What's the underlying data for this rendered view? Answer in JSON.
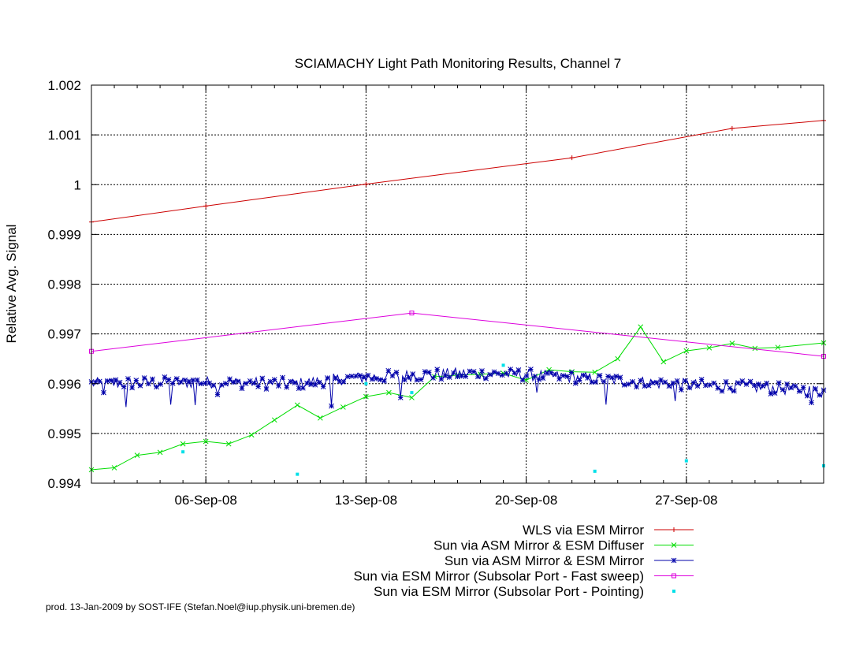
{
  "chart_data": {
    "type": "line",
    "title": "SCIAMACHY Light Path Monitoring Results, Channel 7",
    "xlabel": "",
    "ylabel": "Relative Avg. Signal",
    "x_range": [
      "2008-09-01",
      "2008-10-03"
    ],
    "ylim": [
      0.994,
      1.002
    ],
    "x_ticks": [
      "06-Sep-08",
      "13-Sep-08",
      "20-Sep-08",
      "27-Sep-08"
    ],
    "y_ticks": [
      "1.002",
      "1.001",
      "1",
      "0.999",
      "0.998",
      "0.997",
      "0.996",
      "0.995",
      "0.994"
    ],
    "grid": true,
    "legend_position": "bottom-right, below plot",
    "series": [
      {
        "name": "WLS via ESM Mirror",
        "color": "#cc0000",
        "marker": "plus",
        "points": [
          [
            "2008-09-01",
            0.99925
          ],
          [
            "2008-09-06",
            0.99957
          ],
          [
            "2008-09-13",
            1.00001
          ],
          [
            "2008-09-22",
            1.00054
          ],
          [
            "2008-09-29",
            1.00113
          ],
          [
            "2008-10-03",
            1.00129
          ]
        ]
      },
      {
        "name": "Sun via ASM Mirror & ESM Diffuser",
        "color": "#00dd00",
        "marker": "x",
        "points": [
          [
            "2008-09-01",
            0.99427
          ],
          [
            "2008-09-02",
            0.99431
          ],
          [
            "2008-09-03",
            0.99456
          ],
          [
            "2008-09-04",
            0.99462
          ],
          [
            "2008-09-05",
            0.99479
          ],
          [
            "2008-09-06",
            0.99484
          ],
          [
            "2008-09-07",
            0.99479
          ],
          [
            "2008-09-08",
            0.99497
          ],
          [
            "2008-09-09",
            0.99527
          ],
          [
            "2008-09-10",
            0.99557
          ],
          [
            "2008-09-11",
            0.99531
          ],
          [
            "2008-09-12",
            0.99553
          ],
          [
            "2008-09-13",
            0.99574
          ],
          [
            "2008-09-14",
            0.99582
          ],
          [
            "2008-09-15",
            0.99572
          ],
          [
            "2008-09-16",
            0.99614
          ],
          [
            "2008-09-17",
            0.99617
          ],
          [
            "2008-09-18",
            0.99619
          ],
          [
            "2008-09-19",
            0.99621
          ],
          [
            "2008-09-20",
            0.99607
          ],
          [
            "2008-09-21",
            0.99628
          ],
          [
            "2008-09-22",
            0.99624
          ],
          [
            "2008-09-23",
            0.99623
          ],
          [
            "2008-09-24",
            0.9965
          ],
          [
            "2008-09-25",
            0.99714
          ],
          [
            "2008-09-26",
            0.99644
          ],
          [
            "2008-09-27",
            0.99666
          ],
          [
            "2008-09-28",
            0.99672
          ],
          [
            "2008-09-29",
            0.99681
          ],
          [
            "2008-09-30",
            0.99671
          ],
          [
            "2008-10-01",
            0.99673
          ],
          [
            "2008-10-03",
            0.99682
          ]
        ]
      },
      {
        "name": "Sun via ASM Mirror & ESM Mirror",
        "color": "#0000aa",
        "marker": "star",
        "base_profile": [
          [
            "2008-09-01",
            0.996
          ],
          [
            "2008-09-06",
            0.99603
          ],
          [
            "2008-09-10",
            0.996
          ],
          [
            "2008-09-12",
            0.9961
          ],
          [
            "2008-09-14",
            0.99615
          ],
          [
            "2008-09-17",
            0.9962
          ],
          [
            "2008-09-20",
            0.99618
          ],
          [
            "2008-09-23",
            0.9961
          ],
          [
            "2008-09-26",
            0.996
          ],
          [
            "2008-09-29",
            0.99595
          ],
          [
            "2008-10-03",
            0.99585
          ]
        ],
        "noise": 0.00012,
        "dips": [
          [
            "2008-09-01",
            0.99582
          ],
          [
            "2008-09-02",
            0.99553
          ],
          [
            "2008-09-04",
            0.99558
          ],
          [
            "2008-09-05",
            0.99557
          ],
          [
            "2008-09-06",
            0.99578
          ],
          [
            "2008-09-11",
            0.99555
          ],
          [
            "2008-09-14",
            0.99572
          ],
          [
            "2008-09-20",
            0.99582
          ],
          [
            "2008-09-23",
            0.99558
          ],
          [
            "2008-09-26",
            0.99565
          ],
          [
            "2008-10-02",
            0.99562
          ]
        ]
      },
      {
        "name": "Sun via ESM Mirror (Subsolar Port - Fast sweep)",
        "color": "#dd00dd",
        "marker": "square",
        "points": [
          [
            "2008-09-01",
            0.99665
          ],
          [
            "2008-09-15",
            0.99742
          ],
          [
            "2008-10-03",
            0.99655
          ]
        ]
      },
      {
        "name": "Sun via ESM Mirror (Subsolar Port - Pointing)",
        "color": "#00e0e8",
        "marker": "dot",
        "points": [
          [
            "2008-09-05",
            0.99463
          ],
          [
            "2008-09-10",
            0.99418
          ],
          [
            "2008-09-13",
            0.996
          ],
          [
            "2008-09-15",
            0.99582
          ],
          [
            "2008-09-19",
            0.99637
          ],
          [
            "2008-09-23",
            0.99424
          ],
          [
            "2008-09-27",
            0.99445
          ],
          [
            "2008-10-03",
            0.99435
          ]
        ]
      }
    ]
  },
  "footer": "prod. 13-Jan-2009 by SOST-IFE (Stefan.Noel@iup.physik.uni-bremen.de)"
}
